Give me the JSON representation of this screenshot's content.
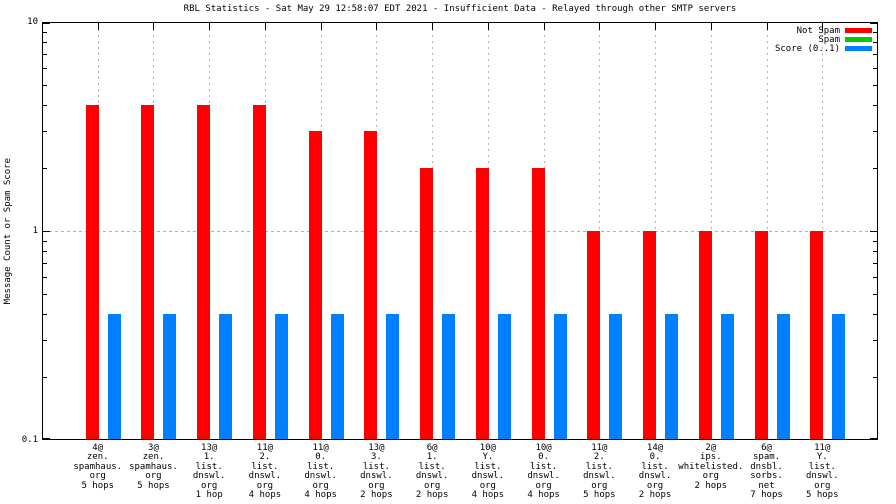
{
  "chart_data": {
    "type": "bar",
    "title": "RBL Statistics - Sat May 29 12:58:07 EDT 2021 - Insufficient Data - Relayed through other SMTP servers",
    "ylabel": "Message Count or Spam Score",
    "xlabel": "",
    "y_scale": "log",
    "ylim": [
      0.1,
      10
    ],
    "y_major_tick_labels": [
      "10",
      "1",
      "0.1"
    ],
    "y_major_tick_values": [
      10,
      1,
      0.1
    ],
    "y_minor_tick_values": [
      0.2,
      0.3,
      0.4,
      0.5,
      0.6,
      0.7,
      0.8,
      0.9,
      2,
      3,
      4,
      5,
      6,
      7,
      8,
      9
    ],
    "grid": {
      "horizontal_dotted_at": 1,
      "vertical_dotted_at_each_category": true,
      "color": "#b0b0b0"
    },
    "legend_position": "top-right-inside",
    "categories": [
      [
        "4@",
        "zen.",
        "spamhaus.",
        "org",
        "5 hops"
      ],
      [
        "3@",
        "zen.",
        "spamhaus.",
        "org",
        "5 hops"
      ],
      [
        "13@",
        "1.",
        "list.",
        "dnswl.",
        "org",
        "1 hop"
      ],
      [
        "11@",
        "2.",
        "list.",
        "dnswl.",
        "org",
        "4 hops"
      ],
      [
        "11@",
        "0.",
        "list.",
        "dnswl.",
        "org",
        "4 hops"
      ],
      [
        "13@",
        "3.",
        "list.",
        "dnswl.",
        "org",
        "2 hops"
      ],
      [
        "6@",
        "1.",
        "list.",
        "dnswl.",
        "org",
        "2 hops"
      ],
      [
        "10@",
        "Y.",
        "list.",
        "dnswl.",
        "org",
        "4 hops"
      ],
      [
        "10@",
        "0.",
        "list.",
        "dnswl.",
        "org",
        "4 hops"
      ],
      [
        "11@",
        "2.",
        "list.",
        "dnswl.",
        "org",
        "5 hops"
      ],
      [
        "14@",
        "0.",
        "list.",
        "dnswl.",
        "org",
        "2 hops"
      ],
      [
        "2@",
        "ips.",
        "whitelisted.",
        "org",
        "2 hops"
      ],
      [
        "6@",
        "spam.",
        "dnsbl.",
        "sorbs.",
        "net",
        "7 hops"
      ],
      [
        "11@",
        "Y.",
        "list.",
        "dnswl.",
        "org",
        "5 hops"
      ]
    ],
    "series": [
      {
        "name": "Not Spam",
        "color": "#ff0000",
        "values": [
          4,
          4,
          4,
          4,
          3,
          3,
          2,
          2,
          2,
          1,
          1,
          1,
          1,
          1
        ]
      },
      {
        "name": "Spam",
        "color": "#00cc00",
        "values": [
          0,
          0,
          0,
          0,
          0,
          0,
          0,
          0,
          0,
          0,
          0,
          0,
          0,
          0
        ]
      },
      {
        "name": "Score (0..1)",
        "color": "#0080ff",
        "values": [
          0.4,
          0.4,
          0.4,
          0.4,
          0.4,
          0.4,
          0.4,
          0.4,
          0.4,
          0.4,
          0.4,
          0.4,
          0.4,
          0.4
        ]
      }
    ]
  }
}
